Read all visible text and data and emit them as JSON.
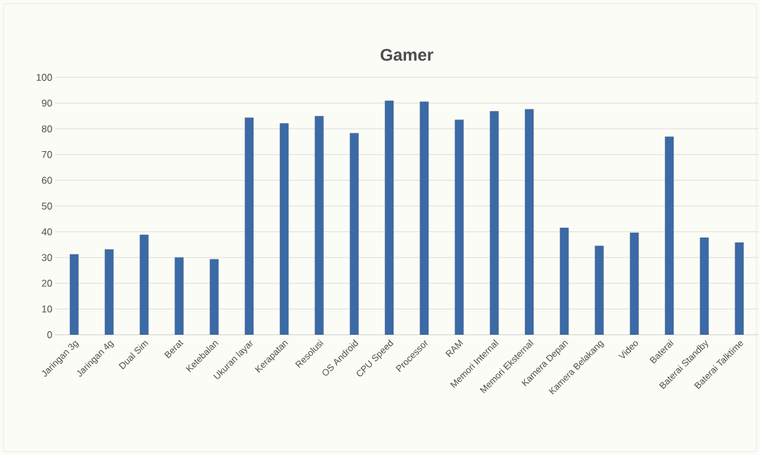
{
  "chart_data": {
    "type": "bar",
    "title": "Gamer",
    "categories": [
      "Jaringan 3g",
      "Jaringan 4g",
      "Dual Sim",
      "Berat",
      "Ketebalan",
      "Ukuran layar",
      "Kerapatan",
      "Resolusi",
      "OS Android",
      "CPU Speed",
      "Processor",
      "RAM",
      "Memori Internal",
      "Memori Eksternal",
      "Kamera Depan",
      "Kamera Belakang",
      "Video",
      "Baterai",
      "Baterai Standby",
      "Baterai Talktime"
    ],
    "values": [
      31.2,
      33.1,
      38.8,
      30.0,
      29.3,
      84.3,
      82.1,
      84.9,
      78.3,
      90.9,
      90.5,
      83.5,
      86.8,
      87.6,
      41.5,
      34.5,
      39.6,
      76.9,
      37.7,
      35.8
    ],
    "color": "#3b6aa6",
    "ylim": [
      0,
      100
    ],
    "yticks": [
      0,
      10,
      20,
      30,
      40,
      50,
      60,
      70,
      80,
      90,
      100
    ],
    "grid": "y"
  }
}
